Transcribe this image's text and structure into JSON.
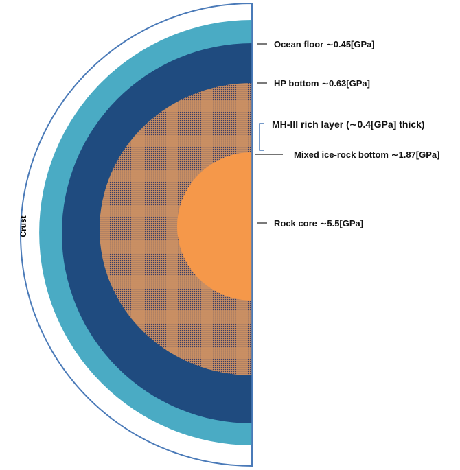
{
  "colors": {
    "outline": "#4a7ab8",
    "crust": "#ffffff",
    "ocean": "#4aabc4",
    "high_pressure_ice": "#1f4b7f",
    "mixed_layer": "#c98f63",
    "mixed_dots": "#3c3f66",
    "rock_core": "#f5984a",
    "bracket": "#4a7ab8"
  },
  "labels": {
    "crust": "Crust",
    "ocean_floor": "Ocean floor ∼0.45[GPa]",
    "hp_bottom": "HP bottom ∼0.63[GPa]",
    "mh_layer": "MH-III rich layer (∼0.4[GPa] thick)",
    "mixed_bottom": "Mixed ice-rock bottom ∼1.87[GPa]",
    "rock_core": "Rock core ∼5.5[GPa]"
  }
}
